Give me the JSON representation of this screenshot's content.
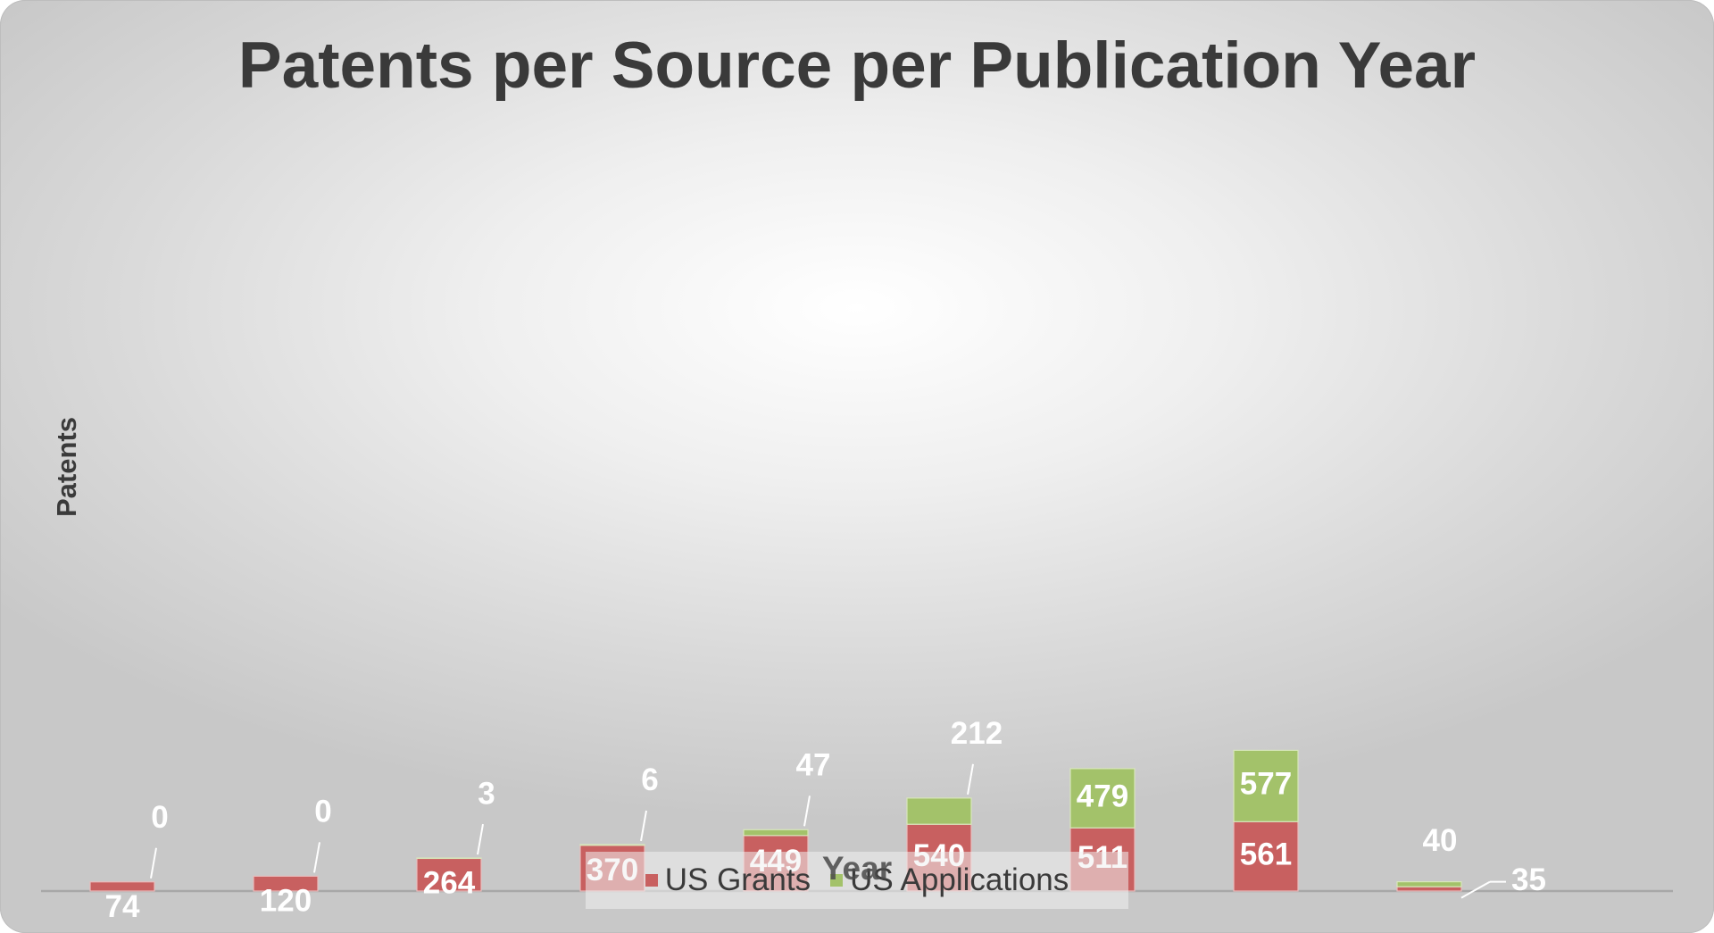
{
  "colors": {
    "us_grants": "#c86060",
    "us_applications": "#a3c26a",
    "gridline": "#a8a8a8",
    "label": "#ffffff",
    "title": "#3a3a3a"
  },
  "chart_data": {
    "type": "bar",
    "stacked": true,
    "title": "Patents per Source per Publication Year",
    "xlabel": "Year",
    "ylabel": "Patents",
    "categories": [
      "",
      "",
      "",
      "",
      "",
      "",
      "",
      "",
      ""
    ],
    "series": [
      {
        "name": "US Grants",
        "values": [
          74,
          120,
          264,
          370,
          449,
          540,
          511,
          561,
          35
        ]
      },
      {
        "name": "US Applications",
        "values": [
          0,
          0,
          3,
          6,
          47,
          212,
          479,
          577,
          40
        ]
      }
    ],
    "ylim": [
      0,
      1150
    ],
    "grid": true,
    "legend_position": "bottom"
  }
}
